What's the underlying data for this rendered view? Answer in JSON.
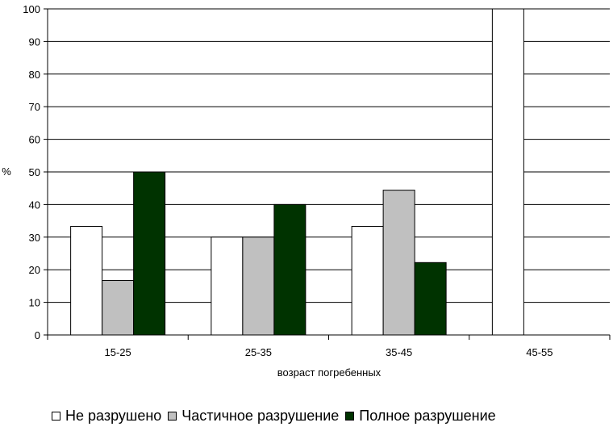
{
  "chart_data": {
    "type": "bar",
    "categories": [
      "15-25",
      "25-35",
      "35-45",
      "45-55"
    ],
    "series": [
      {
        "name": "Не разрушено",
        "color": "#ffffff",
        "values": [
          33.3,
          30,
          33.3,
          100
        ]
      },
      {
        "name": "Частичное разрушение",
        "color": "#c0c0c0",
        "values": [
          16.7,
          30,
          44.4,
          0
        ]
      },
      {
        "name": "Полное разрушение",
        "color": "#003300",
        "values": [
          50,
          40,
          22.2,
          0
        ]
      }
    ],
    "xlabel": "возраст погребенных",
    "ylabel": "%",
    "ylim": [
      0,
      100
    ],
    "yticks": [
      "0",
      "10",
      "20",
      "30",
      "40",
      "50",
      "60",
      "70",
      "80",
      "90",
      "100"
    ],
    "grid": true,
    "legend_position": "bottom"
  }
}
